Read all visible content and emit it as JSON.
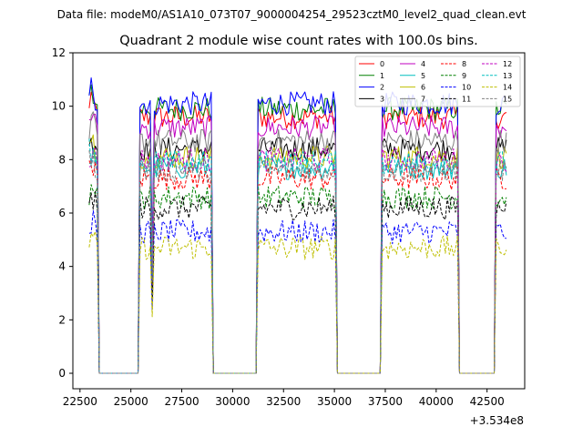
{
  "chart_data": {
    "type": "line",
    "suptitle": "Data file: modeM0/AS1A10_073T07_9000004254_29523cztM0_level2_quad_clean.evt",
    "title": "Quadrant 2 module wise count rates with 100.0s bins.",
    "xlabel": "",
    "ylabel": "",
    "x_offset_label": "+3.534e8",
    "xlim": [
      22150,
      44350
    ],
    "ylim": [
      -0.58,
      12.0
    ],
    "xticks": [
      22500,
      25000,
      27500,
      30000,
      32500,
      35000,
      37500,
      40000,
      42500
    ],
    "xtick_labels": [
      "22500",
      "25000",
      "27500",
      "30000",
      "32500",
      "35000",
      "37500",
      "40000",
      "42500"
    ],
    "yticks": [
      0,
      2,
      4,
      6,
      8,
      10,
      12
    ],
    "ytick_labels": [
      "0",
      "2",
      "4",
      "6",
      "8",
      "10",
      "12"
    ],
    "legend_position": "upper-right",
    "legend_columns": 4,
    "on_segments": [
      {
        "start": 22950,
        "end": 23400
      },
      {
        "start": 25450,
        "end": 28950
      },
      {
        "start": 31250,
        "end": 35050
      },
      {
        "start": 37350,
        "end": 41050
      },
      {
        "start": 42950,
        "end": 43450
      }
    ],
    "series": [
      {
        "name": "0",
        "color": "#ff0000",
        "dash": "solid",
        "level": 9.6
      },
      {
        "name": "1",
        "color": "#008000",
        "dash": "solid",
        "level": 9.9
      },
      {
        "name": "2",
        "color": "#0000ff",
        "dash": "solid",
        "level": 10.1
      },
      {
        "name": "3",
        "color": "#000000",
        "dash": "solid",
        "level": 8.4
      },
      {
        "name": "4",
        "color": "#c000c0",
        "dash": "solid",
        "level": 9.2
      },
      {
        "name": "5",
        "color": "#00bfbf",
        "dash": "solid",
        "level": 7.7
      },
      {
        "name": "6",
        "color": "#bfbf00",
        "dash": "solid",
        "level": 8.1
      },
      {
        "name": "7",
        "color": "#808080",
        "dash": "solid",
        "level": 8.7
      },
      {
        "name": "8",
        "color": "#ff0000",
        "dash": "dashed",
        "level": 7.3
      },
      {
        "name": "9",
        "color": "#008000",
        "dash": "dashed",
        "level": 6.6
      },
      {
        "name": "10",
        "color": "#0000ff",
        "dash": "dashed",
        "level": 5.3
      },
      {
        "name": "11",
        "color": "#000000",
        "dash": "dashed",
        "level": 6.2
      },
      {
        "name": "12",
        "color": "#c000c0",
        "dash": "dashed",
        "level": 8.0
      },
      {
        "name": "13",
        "color": "#00bfbf",
        "dash": "dashed",
        "level": 7.9
      },
      {
        "name": "14",
        "color": "#bfbf00",
        "dash": "dashed",
        "level": 4.7
      },
      {
        "name": "15",
        "color": "#808080",
        "dash": "dashed",
        "level": 7.6
      }
    ]
  }
}
